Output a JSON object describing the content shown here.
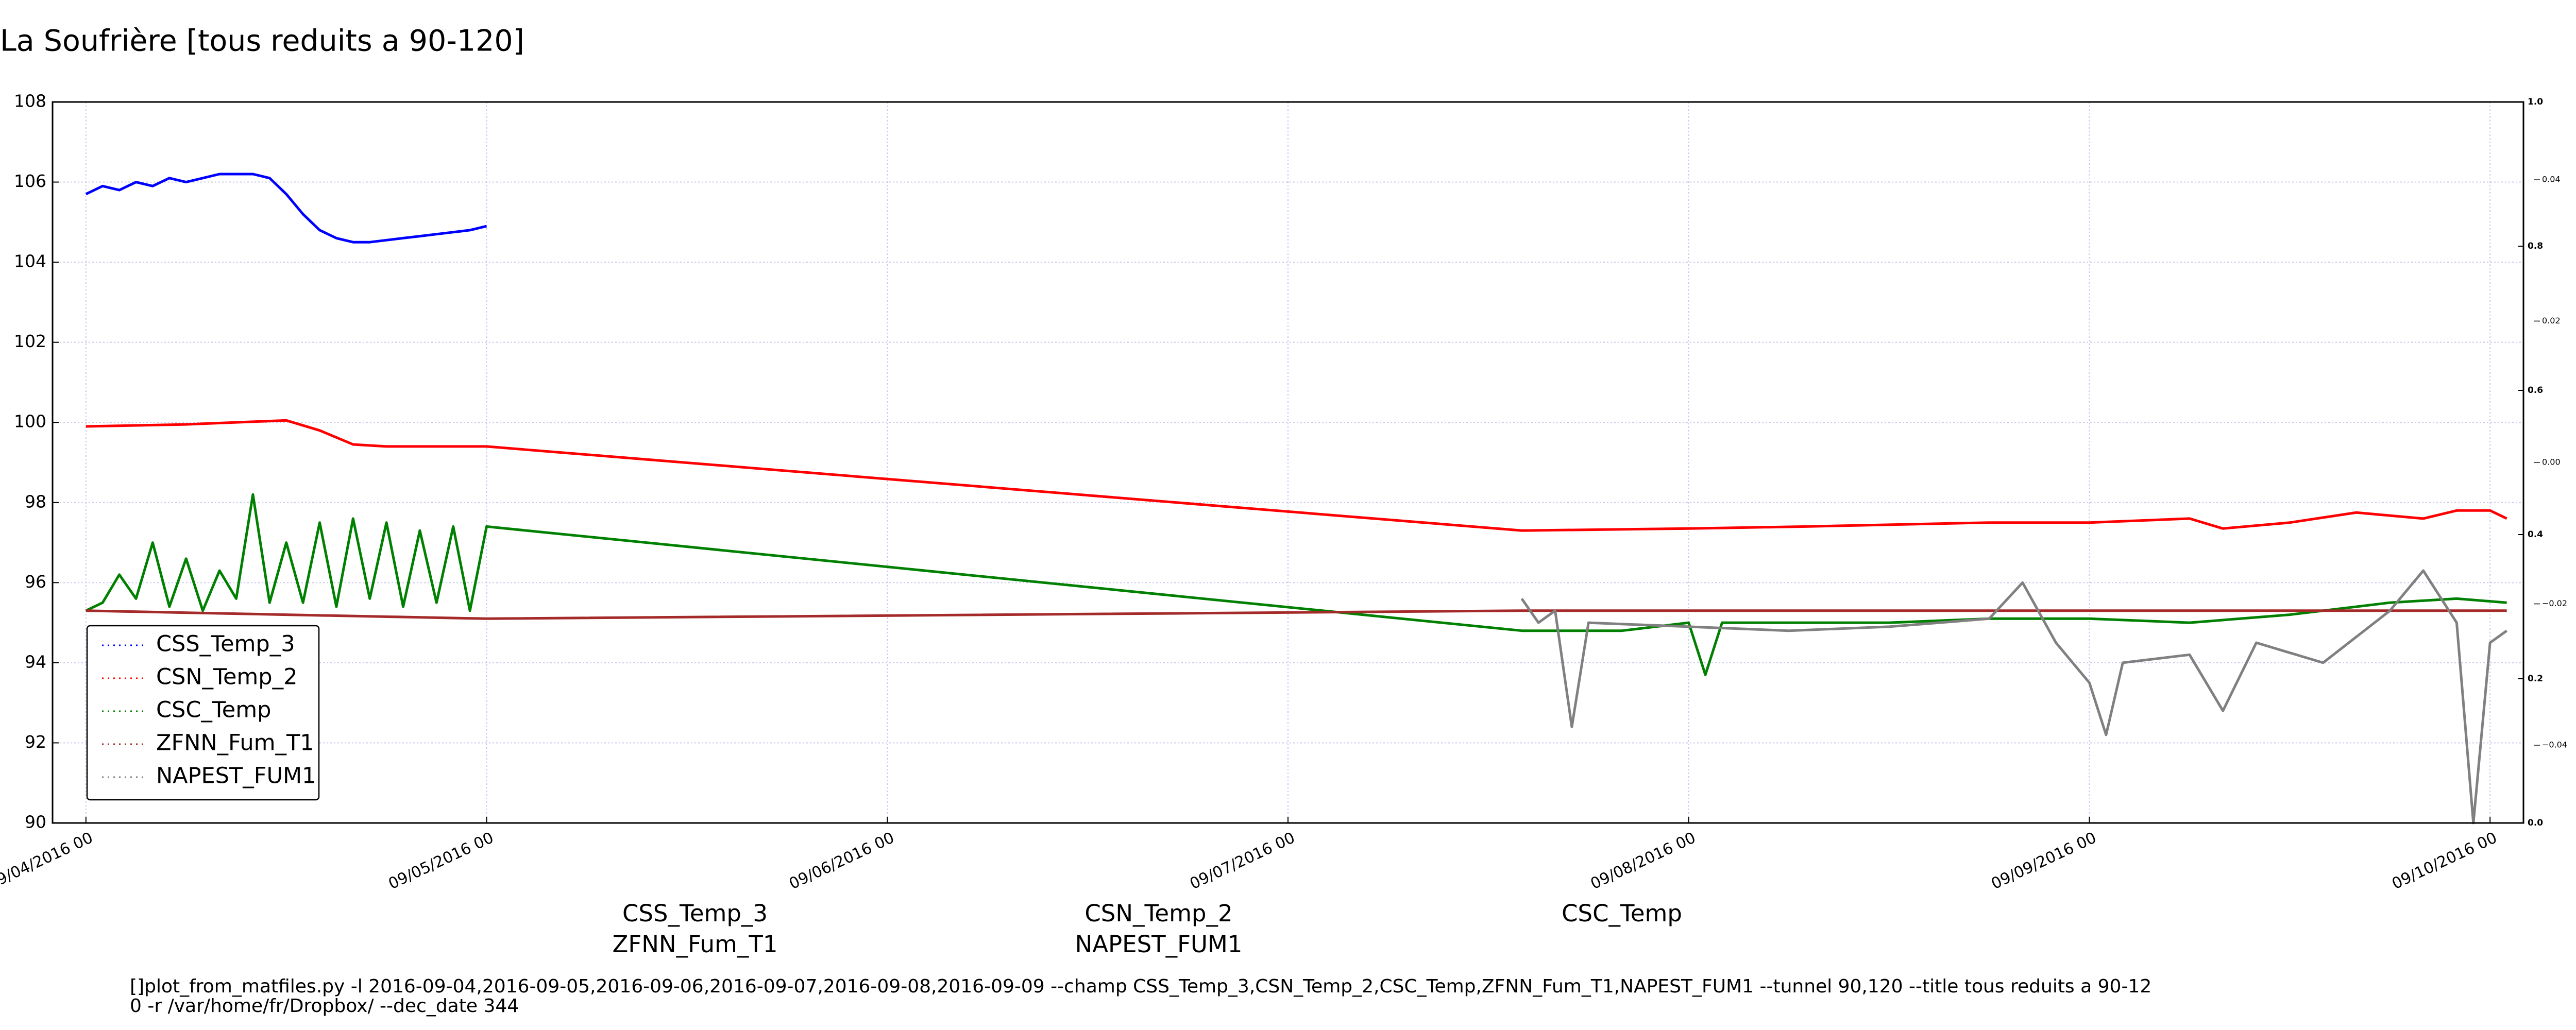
{
  "chart_data": {
    "type": "line",
    "title": "La Soufrière [tous reduits a 90-120]",
    "xlim": [
      "2016-09-03 22",
      "2016-09-10 02"
    ],
    "xticks": [
      {
        "value": "2016-09-04 00",
        "label": "09/04/2016 00"
      },
      {
        "value": "2016-09-05 00",
        "label": "09/05/2016 00"
      },
      {
        "value": "2016-09-06 00",
        "label": "09/06/2016 00"
      },
      {
        "value": "2016-09-07 00",
        "label": "09/07/2016 00"
      },
      {
        "value": "2016-09-08 00",
        "label": "09/08/2016 00"
      },
      {
        "value": "2016-09-09 00",
        "label": "09/09/2016 00"
      },
      {
        "value": "2016-09-10 00",
        "label": "09/10/2016 00"
      }
    ],
    "ylim": [
      90,
      108
    ],
    "yticks": [
      90,
      92,
      94,
      96,
      98,
      100,
      102,
      104,
      106,
      108
    ],
    "y2lim": [
      0,
      1
    ],
    "y2ticks": [
      {
        "value": 0,
        "label": "0.0"
      },
      {
        "value": 0.2,
        "label": "0.2"
      },
      {
        "value": 0.4,
        "label": "0.4"
      },
      {
        "value": 0.6,
        "label": "0.6"
      },
      {
        "value": 0.8,
        "label": "0.8"
      },
      {
        "value": 1,
        "label": "1.0"
      }
    ],
    "y3lim": [
      -0.051,
      0.051
    ],
    "y3ticks": [
      {
        "value": 0.04,
        "label": "0.04"
      },
      {
        "value": 0.02,
        "label": "0.02"
      },
      {
        "value": 0,
        "label": "0.00"
      },
      {
        "value": -0.02,
        "label": "−0.02"
      },
      {
        "value": -0.04,
        "label": "−0.04"
      }
    ],
    "grid": true,
    "legend": "lower left",
    "series": [
      {
        "name": "CSS_Temp_3",
        "color": "#0000ff",
        "x": [
          "2016-09-04 00",
          "2016-09-04 01",
          "2016-09-04 02",
          "2016-09-04 03",
          "2016-09-04 04",
          "2016-09-04 05",
          "2016-09-04 06",
          "2016-09-04 07",
          "2016-09-04 08",
          "2016-09-04 09",
          "2016-09-04 10",
          "2016-09-04 11",
          "2016-09-04 12",
          "2016-09-04 13",
          "2016-09-04 14",
          "2016-09-04 15",
          "2016-09-04 16",
          "2016-09-04 17",
          "2016-09-04 18",
          "2016-09-04 19",
          "2016-09-04 20",
          "2016-09-04 21",
          "2016-09-04 22",
          "2016-09-04 23",
          "2016-09-05 00"
        ],
        "values": [
          105.7,
          105.9,
          105.8,
          106.0,
          105.9,
          106.1,
          106.0,
          106.1,
          106.2,
          106.2,
          106.2,
          106.1,
          105.7,
          105.2,
          104.8,
          104.6,
          104.5,
          104.5,
          104.55,
          104.6,
          104.65,
          104.7,
          104.75,
          104.8,
          104.9
        ]
      },
      {
        "name": "CSN_Temp_2",
        "color": "#ff0000",
        "x": [
          "2016-09-04 00",
          "2016-09-04 06",
          "2016-09-04 12",
          "2016-09-04 14",
          "2016-09-04 16",
          "2016-09-04 18",
          "2016-09-05 00",
          "2016-09-07 14",
          "2016-09-08 00",
          "2016-09-08 07",
          "2016-09-08 18",
          "2016-09-09 00",
          "2016-09-09 06",
          "2016-09-09 08",
          "2016-09-09 12",
          "2016-09-09 16",
          "2016-09-09 20",
          "2016-09-09 22",
          "2016-09-10 00",
          "2016-09-10 01"
        ],
        "values": [
          99.9,
          99.95,
          100.05,
          99.8,
          99.45,
          99.4,
          99.4,
          97.3,
          97.35,
          97.4,
          97.5,
          97.5,
          97.6,
          97.35,
          97.5,
          97.75,
          97.6,
          97.8,
          97.8,
          97.6
        ]
      },
      {
        "name": "CSC_Temp",
        "color": "#008000",
        "x": [
          "2016-09-04 00",
          "2016-09-04 01",
          "2016-09-04 02",
          "2016-09-04 03",
          "2016-09-04 04",
          "2016-09-04 05",
          "2016-09-04 06",
          "2016-09-04 07",
          "2016-09-04 08",
          "2016-09-04 09",
          "2016-09-04 10",
          "2016-09-04 11",
          "2016-09-04 12",
          "2016-09-04 13",
          "2016-09-04 14",
          "2016-09-04 15",
          "2016-09-04 16",
          "2016-09-04 17",
          "2016-09-04 18",
          "2016-09-04 19",
          "2016-09-04 20",
          "2016-09-04 21",
          "2016-09-04 22",
          "2016-09-04 23",
          "2016-09-05 00",
          "2016-09-07 14",
          "2016-09-07 20",
          "2016-09-08 00",
          "2016-09-08 01",
          "2016-09-08 02",
          "2016-09-08 12",
          "2016-09-08 18",
          "2016-09-09 00",
          "2016-09-09 06",
          "2016-09-09 12",
          "2016-09-09 18",
          "2016-09-09 22",
          "2016-09-10 01"
        ],
        "values": [
          95.3,
          95.5,
          96.2,
          95.6,
          97.0,
          95.4,
          96.6,
          95.3,
          96.3,
          95.6,
          98.2,
          95.5,
          97.0,
          95.5,
          97.5,
          95.4,
          97.6,
          95.6,
          97.5,
          95.4,
          97.3,
          95.5,
          97.4,
          95.3,
          97.4,
          94.8,
          94.8,
          95.0,
          93.7,
          95.0,
          95.0,
          95.1,
          95.1,
          95.0,
          95.2,
          95.5,
          95.6,
          95.5
        ]
      },
      {
        "name": "ZFNN_Fum_T1",
        "color": "#a52a2a",
        "x": [
          "2016-09-04 00",
          "2016-09-04 12",
          "2016-09-05 00",
          "2016-09-07 14",
          "2016-09-10 01"
        ],
        "values": [
          95.3,
          95.2,
          95.1,
          95.3,
          95.3
        ]
      },
      {
        "name": "NAPEST_FUM1",
        "color": "#808080",
        "x": [
          "2016-09-07 14",
          "2016-09-07 15",
          "2016-09-07 16",
          "2016-09-07 17",
          "2016-09-07 18",
          "2016-09-08 00",
          "2016-09-08 06",
          "2016-09-08 12",
          "2016-09-08 18",
          "2016-09-08 20",
          "2016-09-08 22",
          "2016-09-09 00",
          "2016-09-09 01",
          "2016-09-09 02",
          "2016-09-09 06",
          "2016-09-09 08",
          "2016-09-09 10",
          "2016-09-09 14",
          "2016-09-09 18",
          "2016-09-09 20",
          "2016-09-09 22",
          "2016-09-09 23",
          "2016-09-10 00",
          "2016-09-10 01"
        ],
        "values": [
          95.6,
          95.0,
          95.3,
          92.4,
          95.0,
          94.9,
          94.8,
          94.9,
          95.1,
          96.0,
          94.5,
          93.5,
          92.2,
          94.0,
          94.2,
          92.8,
          94.5,
          94.0,
          95.3,
          96.3,
          95.0,
          90.0,
          94.5,
          94.8
        ]
      }
    ],
    "footer": [
      "[]plot_from_matfiles.py -l 2016-09-04,2016-09-05,2016-09-06,2016-09-07,2016-09-08,2016-09-09 --champ CSS_Temp_3,CSN_Temp_2,CSC_Temp,ZFNN_Fum_T1,NAPEST_FUM1 --tunnel 90,120 --title tous reduits a 90-12",
      "0 -r /var/home/fr/Dropbox/ --dec_date 344"
    ]
  }
}
